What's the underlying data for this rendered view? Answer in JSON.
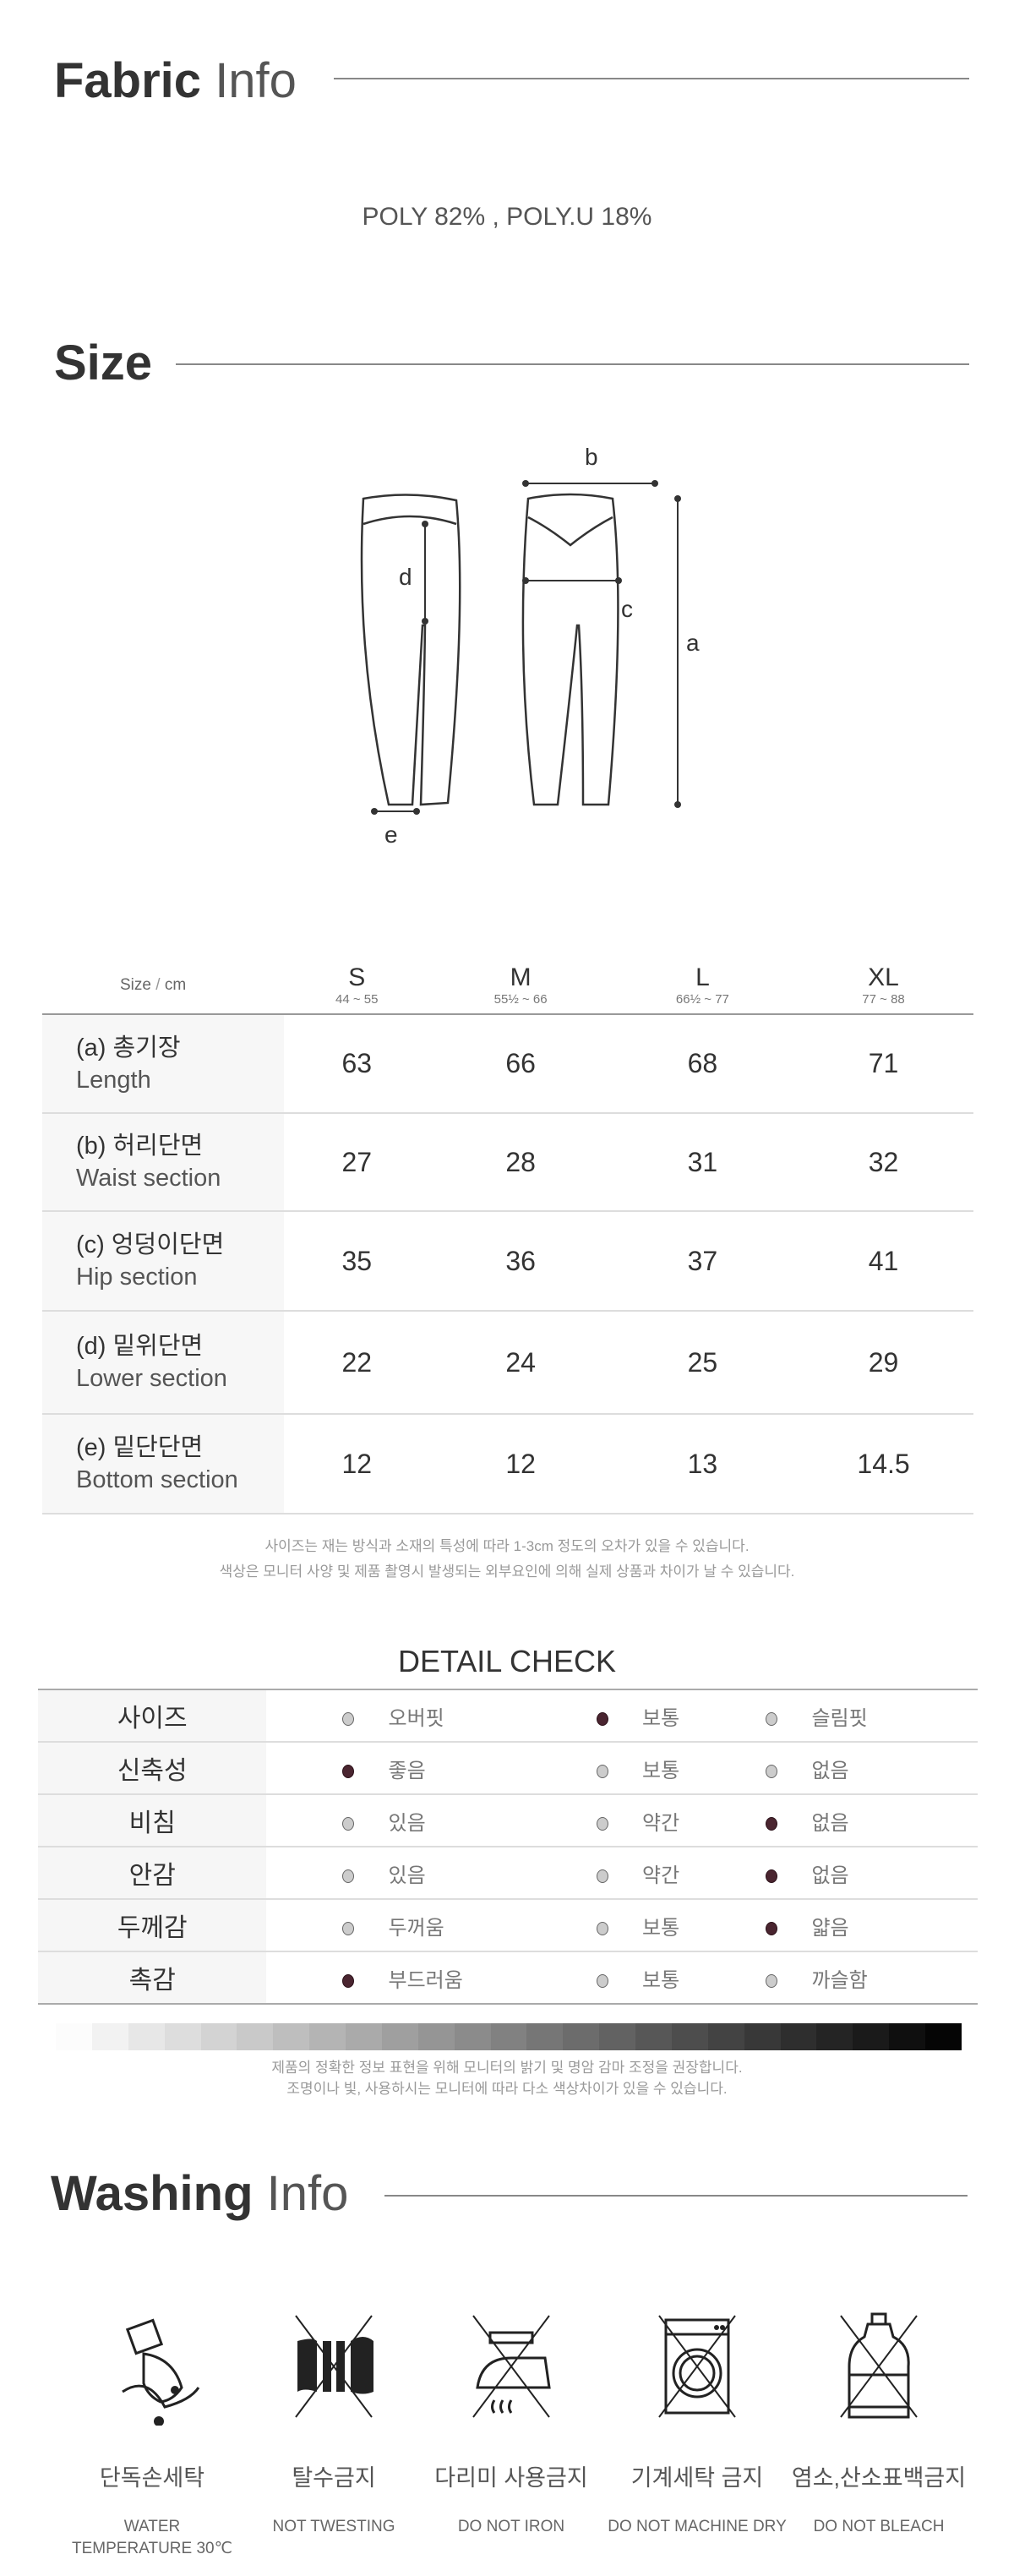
{
  "fabric": {
    "title_bold": "Fabric",
    "title_light": "Info",
    "composition": "POLY 82% , POLY.U 18%"
  },
  "size": {
    "title": "Size",
    "diagram_labels": {
      "a": "a",
      "b": "b",
      "c": "c",
      "d": "d",
      "e": "e"
    }
  },
  "size_table": {
    "corner_left": "Size",
    "corner_right": "cm",
    "columns": [
      {
        "size": "S",
        "range": "44 ~ 55"
      },
      {
        "size": "M",
        "range": "55½ ~ 66"
      },
      {
        "size": "L",
        "range": "66½ ~ 77"
      },
      {
        "size": "XL",
        "range": "77 ~ 88"
      }
    ],
    "rows": [
      {
        "ko": "(a) 총기장",
        "en": "Length",
        "values": [
          "63",
          "66",
          "68",
          "71"
        ]
      },
      {
        "ko": "(b) 허리단면",
        "en": "Waist section",
        "values": [
          "27",
          "28",
          "31",
          "32"
        ]
      },
      {
        "ko": "(c) 엉덩이단면",
        "en": "Hip section",
        "values": [
          "35",
          "36",
          "37",
          "41"
        ]
      },
      {
        "ko": "(d) 밑위단면",
        "en": "Lower section",
        "values": [
          "22",
          "24",
          "25",
          "29"
        ]
      },
      {
        "ko": "(e) 밑단단면",
        "en": "Bottom section",
        "values": [
          "12",
          "12",
          "13",
          "14.5"
        ]
      }
    ],
    "notes": [
      "사이즈는 재는 방식과 소재의 특성에 따라 1-3cm 정도의 오차가 있을 수 있습니다.",
      "색상은 모니터 사양 및 제품 촬영시 발생되는 외부요인에 의해 실제 상품과 차이가 날 수 있습니다."
    ]
  },
  "detail_check": {
    "title": "DETAIL CHECK",
    "selected_color": "#4a2530",
    "rows": [
      {
        "label": "사이즈",
        "options": [
          "오버핏",
          "보통",
          "슬림핏"
        ],
        "selected": 1
      },
      {
        "label": "신축성",
        "options": [
          "좋음",
          "보통",
          "없음"
        ],
        "selected": 0
      },
      {
        "label": "비침",
        "options": [
          "있음",
          "약간",
          "없음"
        ],
        "selected": 2
      },
      {
        "label": "안감",
        "options": [
          "있음",
          "약간",
          "없음"
        ],
        "selected": 2
      },
      {
        "label": "두께감",
        "options": [
          "두꺼움",
          "보통",
          "얇음"
        ],
        "selected": 2
      },
      {
        "label": "촉감",
        "options": [
          "부드러움",
          "보통",
          "까슬함"
        ],
        "selected": 0
      }
    ],
    "notes": [
      "제품의 정확한 정보 표현을 위해 모니터의 밝기 및 명암 감마 조정을 권장합니다.",
      "조명이나 빛, 사용하시는 모니터에 따라 다소 색상차이가 있을 수 있습니다."
    ]
  },
  "washing": {
    "title_bold": "Washing",
    "title_light": "Info",
    "items": [
      {
        "icon": "hand-wash-icon",
        "ko": "단독손세탁",
        "en": "WATER\nTEMPERATURE 30℃"
      },
      {
        "icon": "no-wring-icon",
        "ko": "탈수금지",
        "en": "NOT TWESTING"
      },
      {
        "icon": "no-iron-icon",
        "ko": "다리미 사용금지",
        "en": "DO NOT IRON"
      },
      {
        "icon": "no-machine-wash-icon",
        "ko": "기계세탁 금지",
        "en": "DO NOT MACHINE DRY"
      },
      {
        "icon": "no-bleach-icon",
        "ko": "염소,산소표백금지",
        "en": "DO NOT BLEACH"
      }
    ]
  }
}
